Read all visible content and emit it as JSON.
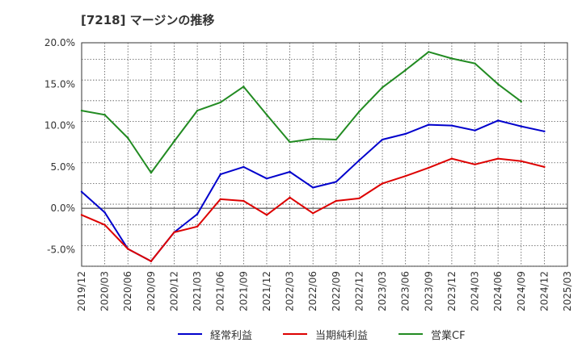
{
  "title": "[7218]  マージンの推移",
  "chart_data": {
    "type": "line",
    "title": "[7218]  マージンの推移",
    "xlabel": "",
    "ylabel": "",
    "x": [
      "2019/12",
      "2020/03",
      "2020/06",
      "2020/09",
      "2020/12",
      "2021/03",
      "2021/06",
      "2021/09",
      "2021/12",
      "2022/03",
      "2022/06",
      "2022/09",
      "2022/12",
      "2023/03",
      "2023/06",
      "2023/09",
      "2023/12",
      "2024/03",
      "2024/06",
      "2024/09",
      "2024/12",
      "2025/03"
    ],
    "ylim": [
      -7,
      20
    ],
    "yticks": [
      20,
      15,
      10,
      5,
      0,
      -5
    ],
    "ytick_labels": [
      "20.0%",
      "15.0%",
      "10.0%",
      "5.0%",
      "0.0%",
      "-5.0%"
    ],
    "grid": true,
    "legend_position": "bottom",
    "series": [
      {
        "name": "経常利益",
        "color": "#0000cc",
        "values": [
          2.0,
          -0.5,
          -4.9,
          -6.4,
          -2.9,
          -0.7,
          4.1,
          5.0,
          3.6,
          4.4,
          2.5,
          3.2,
          5.8,
          8.3,
          9.0,
          10.1,
          10.0,
          9.4,
          10.6,
          9.9,
          9.3,
          null
        ]
      },
      {
        "name": "当期純利益",
        "color": "#dd0000",
        "values": [
          -0.8,
          -2.0,
          -4.9,
          -6.4,
          -2.9,
          -2.2,
          1.1,
          0.9,
          -0.8,
          1.3,
          -0.6,
          0.9,
          1.2,
          3.0,
          3.9,
          4.9,
          6.0,
          5.3,
          6.0,
          5.7,
          5.0,
          null
        ]
      },
      {
        "name": "営業CF",
        "color": "#228b22",
        "values": [
          11.8,
          11.3,
          8.5,
          4.3,
          8.1,
          11.8,
          12.8,
          14.7,
          11.3,
          8.0,
          8.4,
          8.3,
          11.7,
          14.6,
          16.7,
          18.9,
          18.1,
          17.5,
          15.0,
          12.9,
          null,
          null
        ]
      }
    ]
  }
}
